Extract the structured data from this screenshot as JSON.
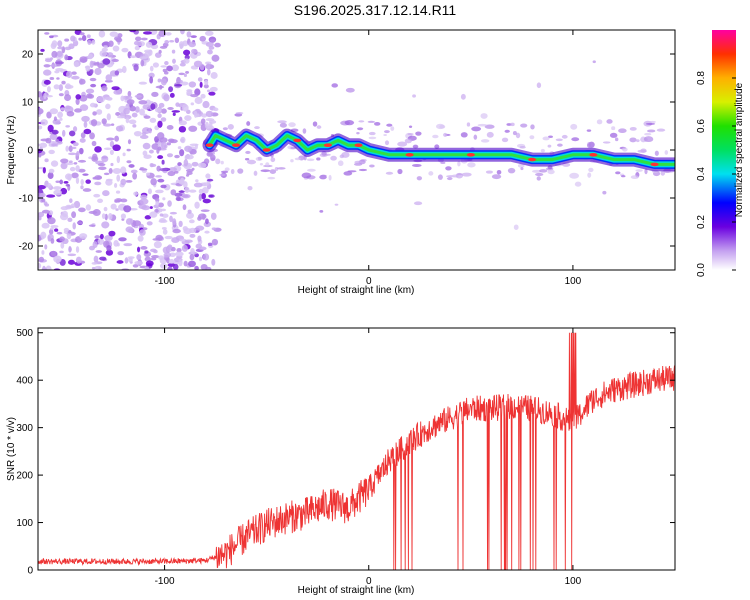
{
  "title": "S196.2025.317.12.14.R11",
  "chart_data": [
    {
      "type": "heatmap",
      "name": "spectrogram",
      "xlabel": "Height of straight line (km)",
      "ylabel": "Frequency (Hz)",
      "xlim": [
        -162,
        150
      ],
      "ylim": [
        -25,
        25
      ],
      "xticks": [
        -100,
        0,
        100
      ],
      "yticks": [
        -20,
        -10,
        0,
        10,
        20
      ],
      "colorbar": {
        "label": "Normalized spectral amplitude",
        "range": [
          0.0,
          1.0
        ],
        "ticks": [
          0.0,
          0.2,
          0.4,
          0.6,
          0.8
        ]
      },
      "signal_track": {
        "x": [
          -78,
          -75,
          -70,
          -65,
          -60,
          -55,
          -50,
          -45,
          -40,
          -35,
          -30,
          -25,
          -20,
          -15,
          -10,
          -5,
          0,
          10,
          20,
          30,
          40,
          50,
          60,
          70,
          80,
          90,
          100,
          110,
          120,
          130,
          140,
          150
        ],
        "freq_hz": [
          1,
          3,
          2,
          1,
          3,
          2,
          0,
          1,
          3,
          2,
          0,
          1,
          1,
          2,
          1,
          1,
          0,
          -1,
          -1,
          -1,
          -1,
          -1,
          -1,
          -1,
          -2,
          -2,
          -1,
          -1,
          -2,
          -2,
          -3,
          -3
        ]
      }
    },
    {
      "type": "line",
      "name": "snr",
      "xlabel": "Height of straight line (km)",
      "ylabel": "SNR (10 * v/v)",
      "xlim": [
        -162,
        150
      ],
      "ylim": [
        0,
        510
      ],
      "xticks": [
        -100,
        0,
        100
      ],
      "yticks": [
        0,
        100,
        200,
        300,
        400,
        500
      ],
      "color": "#ee3333",
      "trend": {
        "x": [
          -162,
          -140,
          -120,
          -100,
          -80,
          -70,
          -60,
          -50,
          -40,
          -30,
          -20,
          -10,
          0,
          10,
          20,
          30,
          40,
          50,
          60,
          70,
          80,
          90,
          100,
          110,
          120,
          130,
          140,
          150
        ],
        "y": [
          18,
          18,
          18,
          18,
          20,
          35,
          70,
          95,
          110,
          120,
          140,
          130,
          170,
          230,
          270,
          300,
          320,
          340,
          340,
          345,
          340,
          330,
          310,
          360,
          380,
          390,
          400,
          405
        ]
      }
    }
  ]
}
